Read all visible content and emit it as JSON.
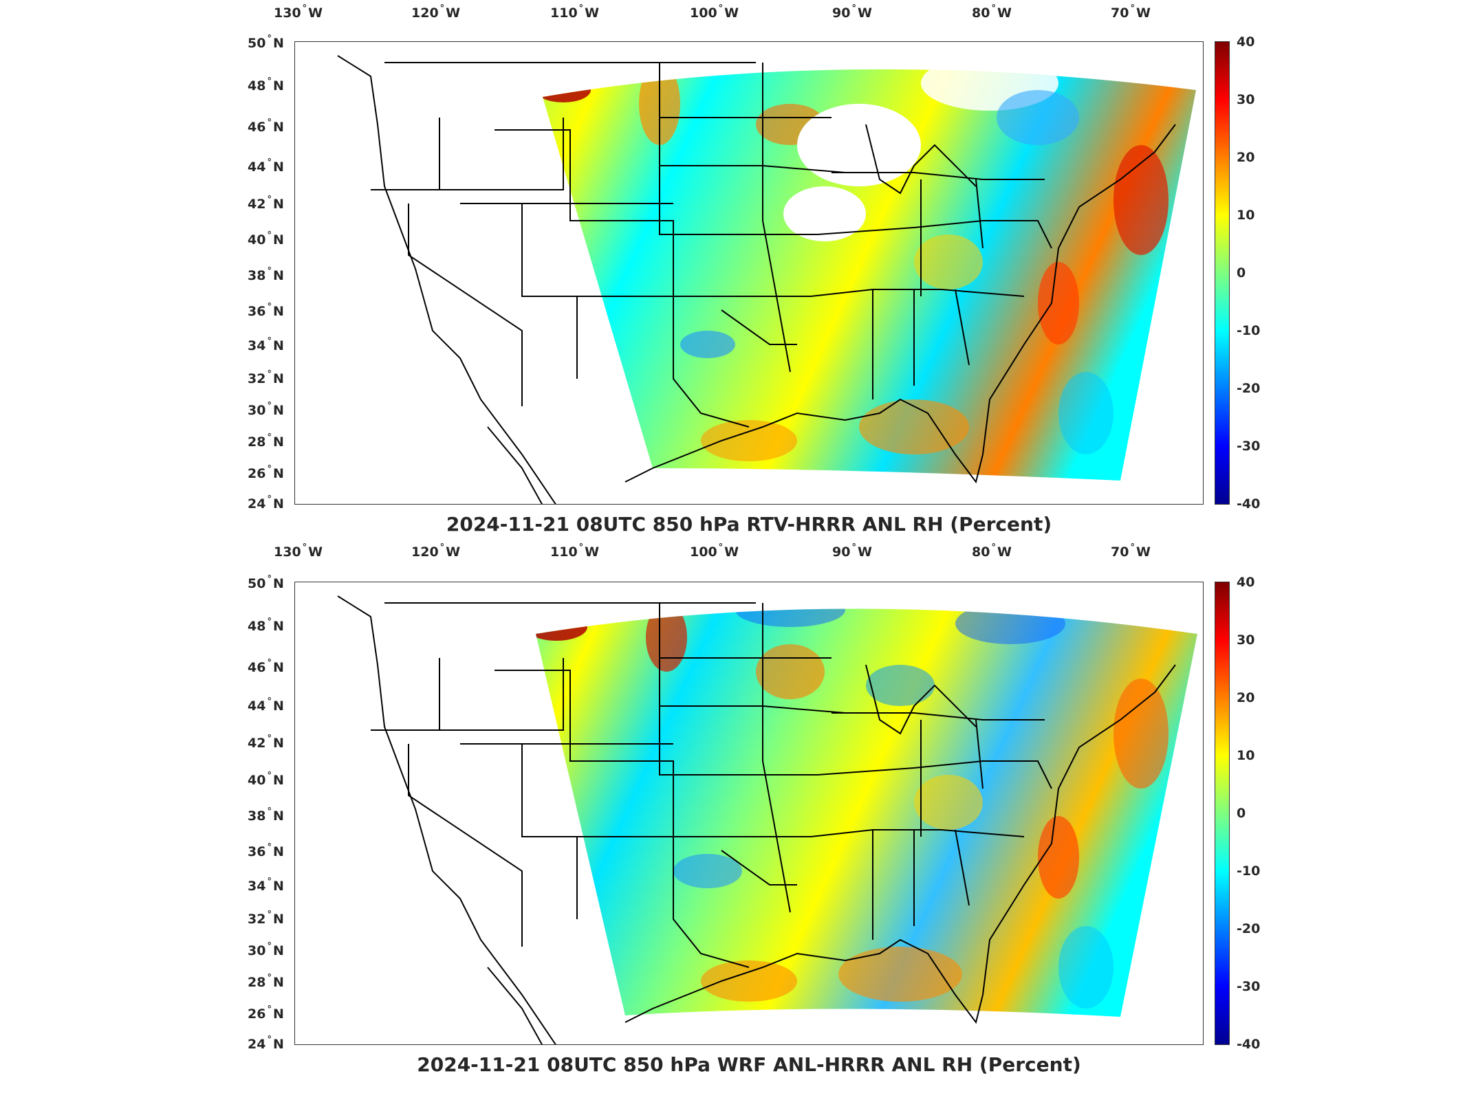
{
  "panels": [
    {
      "title": "2024-11-21 08UTC 850 hPa RTV-HRRR ANL RH (Percent)",
      "field": "RTV-HRRR ANL minus HRRR ANL relative humidity"
    },
    {
      "title": "2024-11-21 08UTC 850 hPa WRF ANL-HRRR ANL RH (Percent)",
      "field": "WRF ANL minus HRRR ANL relative humidity"
    }
  ],
  "axes": {
    "lon_ticks": [
      "130",
      "120",
      "110",
      "100",
      "90",
      "80",
      "70"
    ],
    "lon_suffix": "W",
    "lat_ticks": [
      "50",
      "48",
      "46",
      "44",
      "42",
      "40",
      "38",
      "36",
      "34",
      "32",
      "30",
      "28",
      "26",
      "24"
    ],
    "lat_suffix": "N",
    "lon_range": [
      -130,
      -65
    ],
    "lat_range": [
      24,
      50
    ]
  },
  "colorbar": {
    "colormap": "jet",
    "range": [
      -40,
      40
    ],
    "ticks": [
      "40",
      "30",
      "20",
      "10",
      "0",
      "-10",
      "-20",
      "-30",
      "-40"
    ],
    "colors": [
      "#00008f",
      "#0000ff",
      "#007fff",
      "#00ffff",
      "#7fff7f",
      "#ffff00",
      "#ff7f00",
      "#ff0000",
      "#7f0000"
    ]
  },
  "map": {
    "projection": "lambert-conformal",
    "overlays": [
      "coastlines",
      "us-state-boundaries"
    ]
  }
}
